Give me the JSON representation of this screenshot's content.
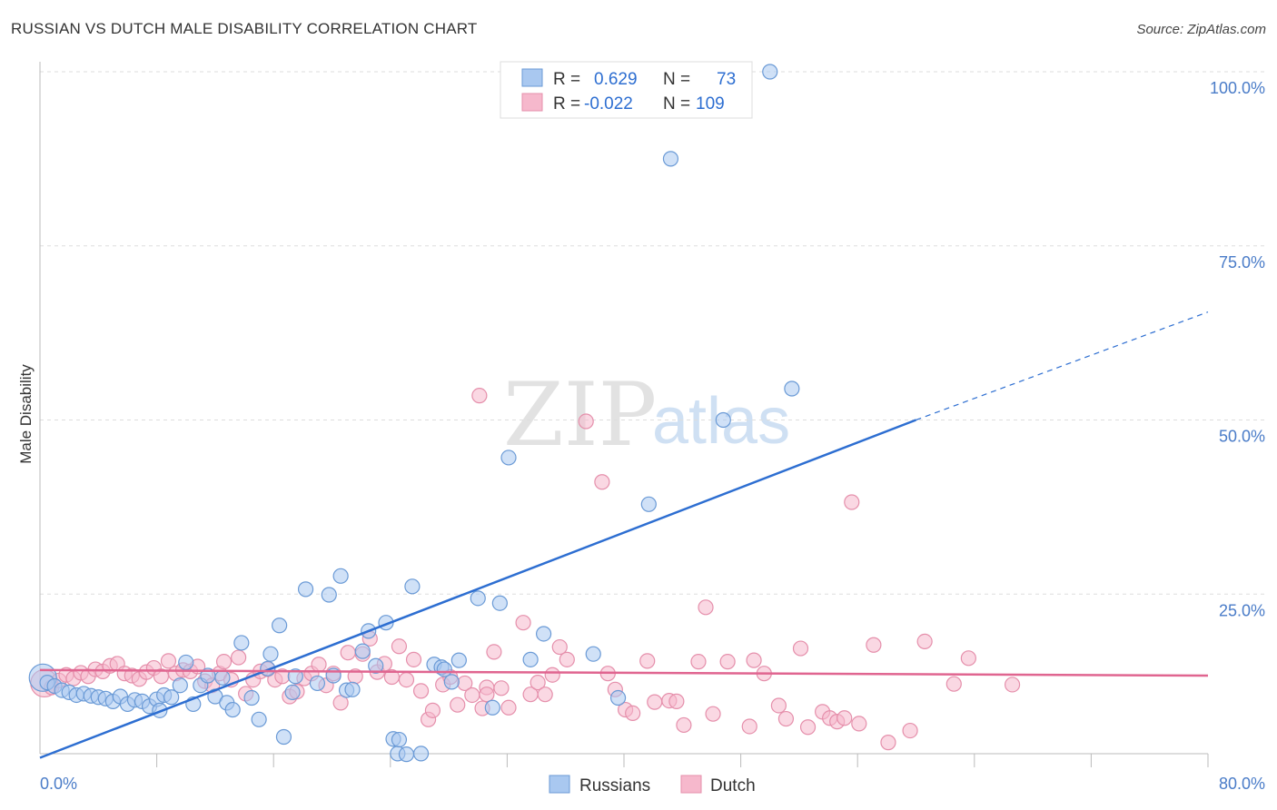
{
  "title": "RUSSIAN VS DUTCH MALE DISABILITY CORRELATION CHART",
  "source": "Source: ZipAtlas.com",
  "watermark": {
    "zip": "ZIP",
    "atlas": "atlas"
  },
  "chart_data": {
    "type": "scatter",
    "ylabel": "Male Disability",
    "xlim": [
      0,
      80
    ],
    "ylim": [
      0,
      100
    ],
    "x_tick_labels": [
      "0.0%",
      "80.0%"
    ],
    "y_ticks": [
      25,
      50,
      75,
      100
    ],
    "y_tick_labels": [
      "25.0%",
      "50.0%",
      "75.0%",
      "100.0%"
    ],
    "grid": true,
    "legend_position": "top-center",
    "legend": {
      "russians": {
        "r_label": "R =",
        "r_value": "0.629",
        "n_label": "N =",
        "n_value": "73"
      },
      "dutch": {
        "r_label": "R =",
        "r_value": "-0.022",
        "n_label": "N =",
        "n_value": "109"
      }
    },
    "bottom_legend": [
      "Russians",
      "Dutch"
    ],
    "colors": {
      "russians_fill": "#a9c8f0",
      "russians_stroke": "#6a9ad6",
      "russians_line": "#2d6ed1",
      "dutch_fill": "#f6b8cc",
      "dutch_stroke": "#e58fab",
      "dutch_line": "#e06590"
    },
    "series": [
      {
        "name": "Russians",
        "trend": {
          "x0": 0,
          "y0": 1.5,
          "x1": 60,
          "y1": 50,
          "dashed_to_x": 80,
          "dashed_to_y": 65.5
        },
        "points": [
          [
            0.2,
            13,
            "big"
          ],
          [
            0.5,
            12.3
          ],
          [
            1,
            11.8
          ],
          [
            1.5,
            11.2
          ],
          [
            2,
            10.9
          ],
          [
            2.5,
            10.5
          ],
          [
            3,
            10.7
          ],
          [
            3.5,
            10.4
          ],
          [
            4,
            10.2
          ],
          [
            4.5,
            10.0
          ],
          [
            5,
            9.6
          ],
          [
            5.5,
            10.3
          ],
          [
            6,
            9.2
          ],
          [
            6.5,
            9.8
          ],
          [
            7,
            9.6
          ],
          [
            7.5,
            8.9
          ],
          [
            8,
            9.9
          ],
          [
            8.2,
            8.3
          ],
          [
            8.5,
            10.5
          ],
          [
            9,
            10.2
          ],
          [
            9.6,
            11.9
          ],
          [
            10,
            15.2
          ],
          [
            10.5,
            9.2
          ],
          [
            11.0,
            11.9
          ],
          [
            11.5,
            13.3
          ],
          [
            12,
            10.3
          ],
          [
            12.5,
            13.0
          ],
          [
            12.8,
            9.4
          ],
          [
            13.2,
            8.4
          ],
          [
            13.8,
            18.0
          ],
          [
            14.5,
            10.1
          ],
          [
            15,
            7.0
          ],
          [
            15.6,
            14.3
          ],
          [
            15.8,
            16.4
          ],
          [
            16.4,
            20.5
          ],
          [
            16.7,
            4.5
          ],
          [
            17.3,
            10.9
          ],
          [
            17.5,
            13.2
          ],
          [
            18.2,
            25.7
          ],
          [
            19.0,
            12.2
          ],
          [
            19.8,
            24.9
          ],
          [
            20.1,
            13.3
          ],
          [
            20.6,
            27.6
          ],
          [
            21.0,
            11.2
          ],
          [
            21.4,
            11.3
          ],
          [
            22.1,
            16.8
          ],
          [
            22.5,
            19.7
          ],
          [
            23,
            14.7
          ],
          [
            23.7,
            20.9
          ],
          [
            24.2,
            4.2
          ],
          [
            24.5,
            2.1
          ],
          [
            25.1,
            2.0
          ],
          [
            25.5,
            26.1
          ],
          [
            26.1,
            2.1
          ],
          [
            27,
            14.9
          ],
          [
            27.5,
            14.5
          ],
          [
            28.2,
            12.4
          ],
          [
            28.7,
            15.5
          ],
          [
            30,
            24.4
          ],
          [
            31,
            8.7
          ],
          [
            31.5,
            23.7
          ],
          [
            32.1,
            44.6
          ],
          [
            33.6,
            15.6
          ],
          [
            34.5,
            19.3
          ],
          [
            37.9,
            16.4
          ],
          [
            39.6,
            10.1
          ],
          [
            41.7,
            37.9
          ],
          [
            43.2,
            87.5
          ],
          [
            46.8,
            50.0
          ],
          [
            50,
            100
          ],
          [
            51.5,
            54.5
          ],
          [
            24.6,
            4.1
          ],
          [
            27.7,
            14.2
          ]
        ]
      },
      {
        "name": "Dutch",
        "trend": {
          "x0": 0,
          "y0": 14.1,
          "x1": 80,
          "y1": 13.3
        },
        "points": [
          [
            0.3,
            12.2,
            "big"
          ],
          [
            0.8,
            11.6
          ],
          [
            1.3,
            12.6
          ],
          [
            1.8,
            13.4
          ],
          [
            2.3,
            12.9
          ],
          [
            2.8,
            13.7
          ],
          [
            3.3,
            13.2
          ],
          [
            3.8,
            14.2
          ],
          [
            4.3,
            13.9
          ],
          [
            4.8,
            14.7
          ],
          [
            5.3,
            15.0
          ],
          [
            5.8,
            13.6
          ],
          [
            6.3,
            13.3
          ],
          [
            6.8,
            12.8
          ],
          [
            7.3,
            13.8
          ],
          [
            7.8,
            14.4
          ],
          [
            8.3,
            13.2
          ],
          [
            8.8,
            15.4
          ],
          [
            9.3,
            13.6
          ],
          [
            9.8,
            14.1
          ],
          [
            10.3,
            13.9
          ],
          [
            10.8,
            14.6
          ],
          [
            11.3,
            12.5
          ],
          [
            11.8,
            11.9
          ],
          [
            12.3,
            13.6
          ],
          [
            12.6,
            15.3
          ],
          [
            13.1,
            12.7
          ],
          [
            13.6,
            15.9
          ],
          [
            14.1,
            10.7
          ],
          [
            14.6,
            12.7
          ],
          [
            15.1,
            13.9
          ],
          [
            15.6,
            14.2
          ],
          [
            16.1,
            12.7
          ],
          [
            16.6,
            13.2
          ],
          [
            17.1,
            10.3
          ],
          [
            17.6,
            11.0
          ],
          [
            18.1,
            12.9
          ],
          [
            18.6,
            13.6
          ],
          [
            19.1,
            14.9
          ],
          [
            19.6,
            11.9
          ],
          [
            20.1,
            13.6
          ],
          [
            20.6,
            9.4
          ],
          [
            21.1,
            16.6
          ],
          [
            21.6,
            13.2
          ],
          [
            22.1,
            16.4
          ],
          [
            22.6,
            18.6
          ],
          [
            23.1,
            13.8
          ],
          [
            23.6,
            15.0
          ],
          [
            24.1,
            13.1
          ],
          [
            24.6,
            17.5
          ],
          [
            25.1,
            12.7
          ],
          [
            25.6,
            15.6
          ],
          [
            26.1,
            11.1
          ],
          [
            26.6,
            7.0
          ],
          [
            26.9,
            8.3
          ],
          [
            27.6,
            12.0
          ],
          [
            28.1,
            13.1
          ],
          [
            28.6,
            9.1
          ],
          [
            29.1,
            12.2
          ],
          [
            29.6,
            10.5
          ],
          [
            30.1,
            53.5
          ],
          [
            30.6,
            11.6
          ],
          [
            31.1,
            16.7
          ],
          [
            31.6,
            11.5
          ],
          [
            32.1,
            8.7
          ],
          [
            33.1,
            20.9
          ],
          [
            33.6,
            10.6
          ],
          [
            34.1,
            12.3
          ],
          [
            34.6,
            10.6
          ],
          [
            35.1,
            13.4
          ],
          [
            35.6,
            17.4
          ],
          [
            36.1,
            15.6
          ],
          [
            37.4,
            49.8
          ],
          [
            38.5,
            41.1
          ],
          [
            38.9,
            13.6
          ],
          [
            39.4,
            11.3
          ],
          [
            40.1,
            8.4
          ],
          [
            40.6,
            7.9
          ],
          [
            41.6,
            15.4
          ],
          [
            42.1,
            9.5
          ],
          [
            43.1,
            9.7
          ],
          [
            43.6,
            9.6
          ],
          [
            44.1,
            6.2
          ],
          [
            45.1,
            15.3
          ],
          [
            45.6,
            23.1
          ],
          [
            46.1,
            7.8
          ],
          [
            47.1,
            15.3
          ],
          [
            48.6,
            6.0
          ],
          [
            48.9,
            15.5
          ],
          [
            49.6,
            13.6
          ],
          [
            50.6,
            9.0
          ],
          [
            51.1,
            7.1
          ],
          [
            52.1,
            17.2
          ],
          [
            52.6,
            5.9
          ],
          [
            53.6,
            8.1
          ],
          [
            54.1,
            7.2
          ],
          [
            54.6,
            6.7
          ],
          [
            55.1,
            7.2
          ],
          [
            55.6,
            38.2
          ],
          [
            56.1,
            6.4
          ],
          [
            57.1,
            17.7
          ],
          [
            58.1,
            3.7
          ],
          [
            59.6,
            5.4
          ],
          [
            60.6,
            18.2
          ],
          [
            62.6,
            12.1
          ],
          [
            63.6,
            15.8
          ],
          [
            66.6,
            12.0
          ],
          [
            30.3,
            8.6
          ],
          [
            30.6,
            10.6
          ]
        ]
      }
    ]
  }
}
